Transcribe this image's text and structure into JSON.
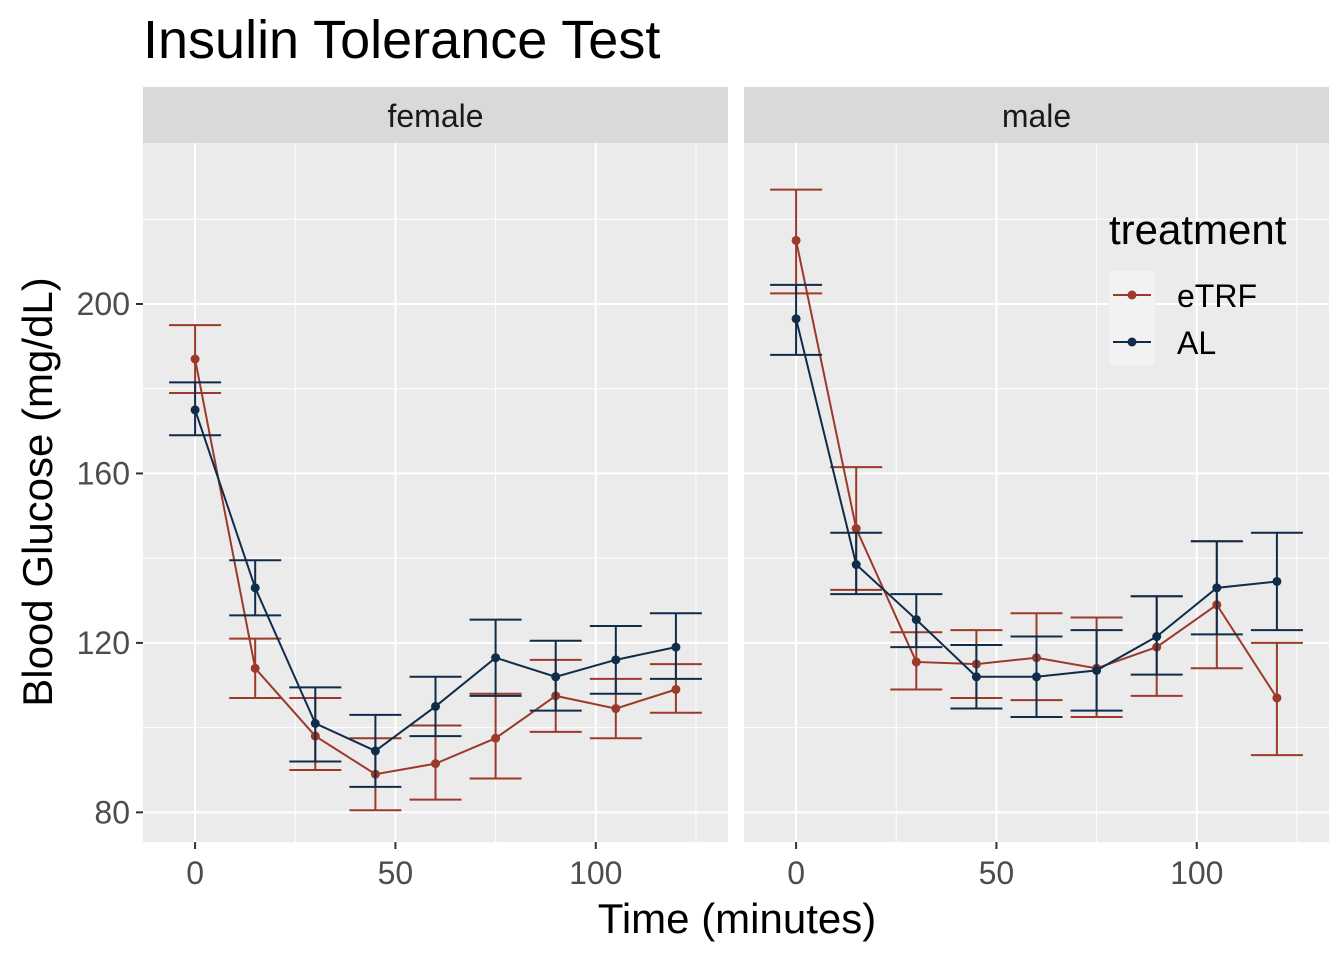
{
  "chart_data": {
    "type": "line",
    "title": "Insulin Tolerance Test",
    "xlabel": "Time (minutes)",
    "ylabel": "Blood Glucose (mg/dL)",
    "xlim": [
      -13,
      133
    ],
    "ylim": [
      73,
      238
    ],
    "x_ticks": [
      0,
      50,
      100
    ],
    "x_tick_labels": [
      "0",
      "50",
      "100"
    ],
    "y_ticks": [
      80,
      120,
      160,
      200
    ],
    "y_tick_labels": [
      "80",
      "120",
      "160",
      "200"
    ],
    "grid": true,
    "legend": {
      "title": "treatment",
      "position": "top-right (inside male panel)",
      "labels": [
        "eTRF",
        "AL"
      ]
    },
    "colors": {
      "eTRF": "#9c3a2a",
      "AL": "#0f2c4b",
      "panel_bg": "#ebebeb",
      "strip_bg": "#d9d9d9",
      "grid": "#ffffff"
    },
    "x": [
      0,
      15,
      30,
      45,
      60,
      75,
      90,
      105,
      120
    ],
    "panels": [
      {
        "label": "female",
        "series": [
          {
            "name": "eTRF",
            "values": [
              187,
              114,
              98,
              89,
              91.5,
              97.5,
              107.5,
              104.5,
              109
            ],
            "lower": [
              179,
              107,
              90,
              80.5,
              83,
              88,
              99,
              97.5,
              103.5
            ],
            "upper": [
              195,
              121,
              107,
              97.5,
              100.5,
              108,
              116,
              111.5,
              115
            ]
          },
          {
            "name": "AL",
            "values": [
              175,
              133,
              101,
              94.5,
              105,
              116.5,
              112,
              116,
              119
            ],
            "lower": [
              169,
              126.5,
              92,
              86,
              98,
              107.5,
              104,
              108,
              111.5
            ],
            "upper": [
              181.5,
              139.5,
              109.5,
              103,
              112,
              125.5,
              120.5,
              124,
              127
            ]
          }
        ]
      },
      {
        "label": "male",
        "series": [
          {
            "name": "eTRF",
            "values": [
              215,
              147,
              115.5,
              115,
              116.5,
              114,
              119,
              129,
              107
            ],
            "lower": [
              202.5,
              132.5,
              109,
              107,
              106.5,
              102.5,
              107.5,
              114,
              93.5
            ],
            "upper": [
              227,
              161.5,
              122.5,
              123,
              127,
              126,
              131,
              144,
              120
            ]
          },
          {
            "name": "AL",
            "values": [
              196.5,
              138.5,
              125.5,
              112,
              112,
              113.5,
              121.5,
              133,
              134.5
            ],
            "lower": [
              188,
              131.5,
              119,
              104.5,
              102.5,
              104,
              112.5,
              122,
              123
            ],
            "upper": [
              204.5,
              146,
              131.5,
              119.5,
              121.5,
              123,
              131,
              144,
              146
            ]
          }
        ]
      }
    ]
  }
}
